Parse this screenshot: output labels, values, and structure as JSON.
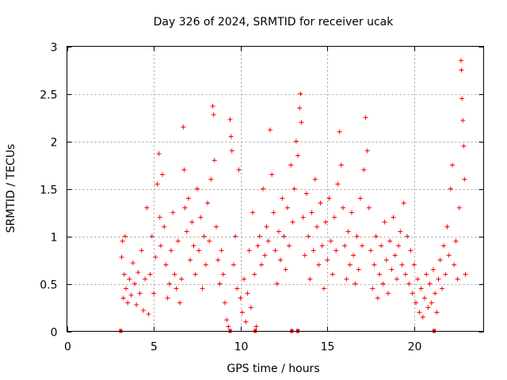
{
  "chart_data": {
    "type": "scatter",
    "title": "Day 326 of 2024, SRMTID for receiver ucak",
    "xlabel": "GPS time / hours",
    "ylabel": "SRMTID / TECUs",
    "xlim": [
      0,
      24
    ],
    "ylim": [
      0,
      3
    ],
    "xticks": [
      0,
      5,
      10,
      15,
      20
    ],
    "yticks": [
      0,
      0.5,
      1,
      1.5,
      2,
      2.5,
      3
    ],
    "xtick_labels": [
      "0",
      "5",
      "10",
      "15",
      "20"
    ],
    "ytick_labels": [
      "0",
      "0.5",
      "1",
      "1.5",
      "2",
      "2.5",
      "3"
    ],
    "grid": true,
    "marker": "+",
    "series_color": "#ff0000",
    "series": [
      {
        "name": "SRMTID",
        "points": [
          [
            3.15,
            0.78
          ],
          [
            3.2,
            0.95
          ],
          [
            3.25,
            0.35
          ],
          [
            3.3,
            0.6
          ],
          [
            3.35,
            1.0
          ],
          [
            3.4,
            0.45
          ],
          [
            3.5,
            0.3
          ],
          [
            3.6,
            0.55
          ],
          [
            3.7,
            0.38
          ],
          [
            3.8,
            0.72
          ],
          [
            3.9,
            0.5
          ],
          [
            4.0,
            0.28
          ],
          [
            4.1,
            0.62
          ],
          [
            4.2,
            0.4
          ],
          [
            4.3,
            0.85
          ],
          [
            4.4,
            0.22
          ],
          [
            4.5,
            0.55
          ],
          [
            4.6,
            1.3
          ],
          [
            4.7,
            0.18
          ],
          [
            4.8,
            0.6
          ],
          [
            4.9,
            1.0
          ],
          [
            5.0,
            0.4
          ],
          [
            5.1,
            0.78
          ],
          [
            5.2,
            1.55
          ],
          [
            5.3,
            1.87
          ],
          [
            5.35,
            1.2
          ],
          [
            5.4,
            0.9
          ],
          [
            5.5,
            1.65
          ],
          [
            5.6,
            1.1
          ],
          [
            5.7,
            0.7
          ],
          [
            5.8,
            0.35
          ],
          [
            5.9,
            0.5
          ],
          [
            6.0,
            0.85
          ],
          [
            6.1,
            1.25
          ],
          [
            6.2,
            0.6
          ],
          [
            6.3,
            0.45
          ],
          [
            6.4,
            0.95
          ],
          [
            6.5,
            0.3
          ],
          [
            6.6,
            0.55
          ],
          [
            6.7,
            2.15
          ],
          [
            6.75,
            1.7
          ],
          [
            6.8,
            1.3
          ],
          [
            6.9,
            1.05
          ],
          [
            7.0,
            1.4
          ],
          [
            7.1,
            0.75
          ],
          [
            7.2,
            1.15
          ],
          [
            7.3,
            0.9
          ],
          [
            7.4,
            0.6
          ],
          [
            7.5,
            1.5
          ],
          [
            7.6,
            0.85
          ],
          [
            7.7,
            1.2
          ],
          [
            7.8,
            0.45
          ],
          [
            7.9,
            1.0
          ],
          [
            8.0,
            0.7
          ],
          [
            8.1,
            1.35
          ],
          [
            8.2,
            0.95
          ],
          [
            8.3,
            1.6
          ],
          [
            8.4,
            2.37
          ],
          [
            8.45,
            2.28
          ],
          [
            8.5,
            1.8
          ],
          [
            8.6,
            1.1
          ],
          [
            8.7,
            0.75
          ],
          [
            8.8,
            0.5
          ],
          [
            8.9,
            0.85
          ],
          [
            9.0,
            0.6
          ],
          [
            9.1,
            0.3
          ],
          [
            9.2,
            0.12
          ],
          [
            9.3,
            0.05
          ],
          [
            9.4,
            2.23
          ],
          [
            9.45,
            2.05
          ],
          [
            9.5,
            1.9
          ],
          [
            9.6,
            0.7
          ],
          [
            9.7,
            1.0
          ],
          [
            9.8,
            0.45
          ],
          [
            9.9,
            1.7
          ],
          [
            10.0,
            0.35
          ],
          [
            10.1,
            0.2
          ],
          [
            10.2,
            0.55
          ],
          [
            10.3,
            0.1
          ],
          [
            10.4,
            0.4
          ],
          [
            10.5,
            0.85
          ],
          [
            10.6,
            0.25
          ],
          [
            10.7,
            1.25
          ],
          [
            10.8,
            0.6
          ],
          [
            10.9,
            0.05
          ],
          [
            11.0,
            0.9
          ],
          [
            11.1,
            1.0
          ],
          [
            11.2,
            0.7
          ],
          [
            11.3,
            1.5
          ],
          [
            11.4,
            0.8
          ],
          [
            11.5,
            1.1
          ],
          [
            11.6,
            0.95
          ],
          [
            11.7,
            2.12
          ],
          [
            11.8,
            1.65
          ],
          [
            11.9,
            1.25
          ],
          [
            12.0,
            0.85
          ],
          [
            12.1,
            0.5
          ],
          [
            12.2,
            1.05
          ],
          [
            12.3,
            0.75
          ],
          [
            12.4,
            1.4
          ],
          [
            12.5,
            1.0
          ],
          [
            12.6,
            0.65
          ],
          [
            12.7,
            1.3
          ],
          [
            12.8,
            0.9
          ],
          [
            12.9,
            1.75
          ],
          [
            13.0,
            1.15
          ],
          [
            13.1,
            1.5
          ],
          [
            13.2,
            2.0
          ],
          [
            13.3,
            1.85
          ],
          [
            13.4,
            2.35
          ],
          [
            13.45,
            2.5
          ],
          [
            13.5,
            2.2
          ],
          [
            13.6,
            1.2
          ],
          [
            13.7,
            0.8
          ],
          [
            13.8,
            1.45
          ],
          [
            13.9,
            1.0
          ],
          [
            14.0,
            0.55
          ],
          [
            14.1,
            1.25
          ],
          [
            14.2,
            0.85
          ],
          [
            14.3,
            1.6
          ],
          [
            14.4,
            1.1
          ],
          [
            14.5,
            0.7
          ],
          [
            14.6,
            1.35
          ],
          [
            14.7,
            0.9
          ],
          [
            14.8,
            0.45
          ],
          [
            14.9,
            1.15
          ],
          [
            15.0,
            0.75
          ],
          [
            15.1,
            1.4
          ],
          [
            15.2,
            0.95
          ],
          [
            15.3,
            0.6
          ],
          [
            15.4,
            1.2
          ],
          [
            15.5,
            0.85
          ],
          [
            15.6,
            1.55
          ],
          [
            15.7,
            2.1
          ],
          [
            15.8,
            1.75
          ],
          [
            15.9,
            1.3
          ],
          [
            16.0,
            0.9
          ],
          [
            16.1,
            0.55
          ],
          [
            16.2,
            1.05
          ],
          [
            16.3,
            0.7
          ],
          [
            16.4,
            1.25
          ],
          [
            16.5,
            0.8
          ],
          [
            16.6,
            0.5
          ],
          [
            16.7,
            1.0
          ],
          [
            16.8,
            0.65
          ],
          [
            16.9,
            1.4
          ],
          [
            17.0,
            0.9
          ],
          [
            17.1,
            1.7
          ],
          [
            17.2,
            2.25
          ],
          [
            17.3,
            1.9
          ],
          [
            17.4,
            1.3
          ],
          [
            17.5,
            0.85
          ],
          [
            17.6,
            0.45
          ],
          [
            17.7,
            0.7
          ],
          [
            17.8,
            1.0
          ],
          [
            17.9,
            0.35
          ],
          [
            18.0,
            0.6
          ],
          [
            18.1,
            0.9
          ],
          [
            18.2,
            0.5
          ],
          [
            18.3,
            1.15
          ],
          [
            18.4,
            0.75
          ],
          [
            18.5,
            0.4
          ],
          [
            18.6,
            0.95
          ],
          [
            18.7,
            0.65
          ],
          [
            18.8,
            1.2
          ],
          [
            18.9,
            0.8
          ],
          [
            19.0,
            0.55
          ],
          [
            19.1,
            0.9
          ],
          [
            19.2,
            1.05
          ],
          [
            19.3,
            0.7
          ],
          [
            19.4,
            1.35
          ],
          [
            19.5,
            0.6
          ],
          [
            19.6,
            1.0
          ],
          [
            19.7,
            0.5
          ],
          [
            19.8,
            0.85
          ],
          [
            19.9,
            0.4
          ],
          [
            20.0,
            0.7
          ],
          [
            20.1,
            0.3
          ],
          [
            20.2,
            0.55
          ],
          [
            20.3,
            0.2
          ],
          [
            20.4,
            0.45
          ],
          [
            20.5,
            0.15
          ],
          [
            20.6,
            0.35
          ],
          [
            20.7,
            0.6
          ],
          [
            20.8,
            0.25
          ],
          [
            20.9,
            0.5
          ],
          [
            21.0,
            0.3
          ],
          [
            21.1,
            0.65
          ],
          [
            21.2,
            0.4
          ],
          [
            21.3,
            0.2
          ],
          [
            21.4,
            0.55
          ],
          [
            21.5,
            0.75
          ],
          [
            21.6,
            0.45
          ],
          [
            21.7,
            0.9
          ],
          [
            21.8,
            0.6
          ],
          [
            21.9,
            1.1
          ],
          [
            22.0,
            0.8
          ],
          [
            22.1,
            1.5
          ],
          [
            22.2,
            1.75
          ],
          [
            22.3,
            0.7
          ],
          [
            22.4,
            0.95
          ],
          [
            22.5,
            0.55
          ],
          [
            22.6,
            1.3
          ],
          [
            22.7,
            2.85
          ],
          [
            22.72,
            2.75
          ],
          [
            22.75,
            2.45
          ],
          [
            22.8,
            2.22
          ],
          [
            22.85,
            1.95
          ],
          [
            22.9,
            1.6
          ],
          [
            22.95,
            0.6
          ]
        ]
      }
    ],
    "gap_markers_x": [
      3.1,
      9.4,
      10.85,
      12.95,
      13.3,
      21.15
    ]
  }
}
